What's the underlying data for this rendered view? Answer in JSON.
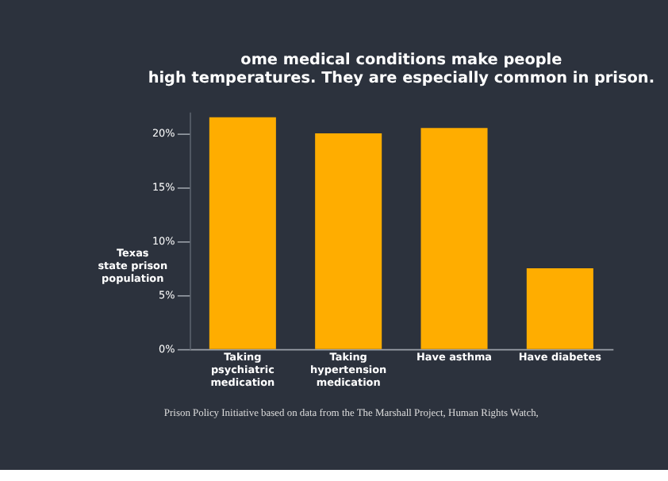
{
  "chart_data": {
    "type": "bar",
    "title": [
      "ome medical conditions make people",
      "high temperatures. They are especially common in prison."
    ],
    "ylabel": "Texas\nstate prison\npopulation",
    "categories": [
      "Taking\npsychiatric\nmedication",
      "Taking\nhypertension\nmedication",
      "Have asthma",
      "Have diabetes"
    ],
    "values": [
      21.5,
      20,
      20.5,
      7.5
    ],
    "color": "#ffad00",
    "ylim": [
      0,
      22
    ],
    "yticks": [
      {
        "value": 0,
        "label": "0%"
      },
      {
        "value": 5,
        "label": "5%"
      },
      {
        "value": 10,
        "label": "10%"
      },
      {
        "value": 15,
        "label": "15%"
      },
      {
        "value": 20,
        "label": "20%"
      }
    ],
    "grid": false,
    "annotations": [
      "Prison Policy Initiative based on data from the The Marshall Project, Human Rights Watch,"
    ]
  }
}
